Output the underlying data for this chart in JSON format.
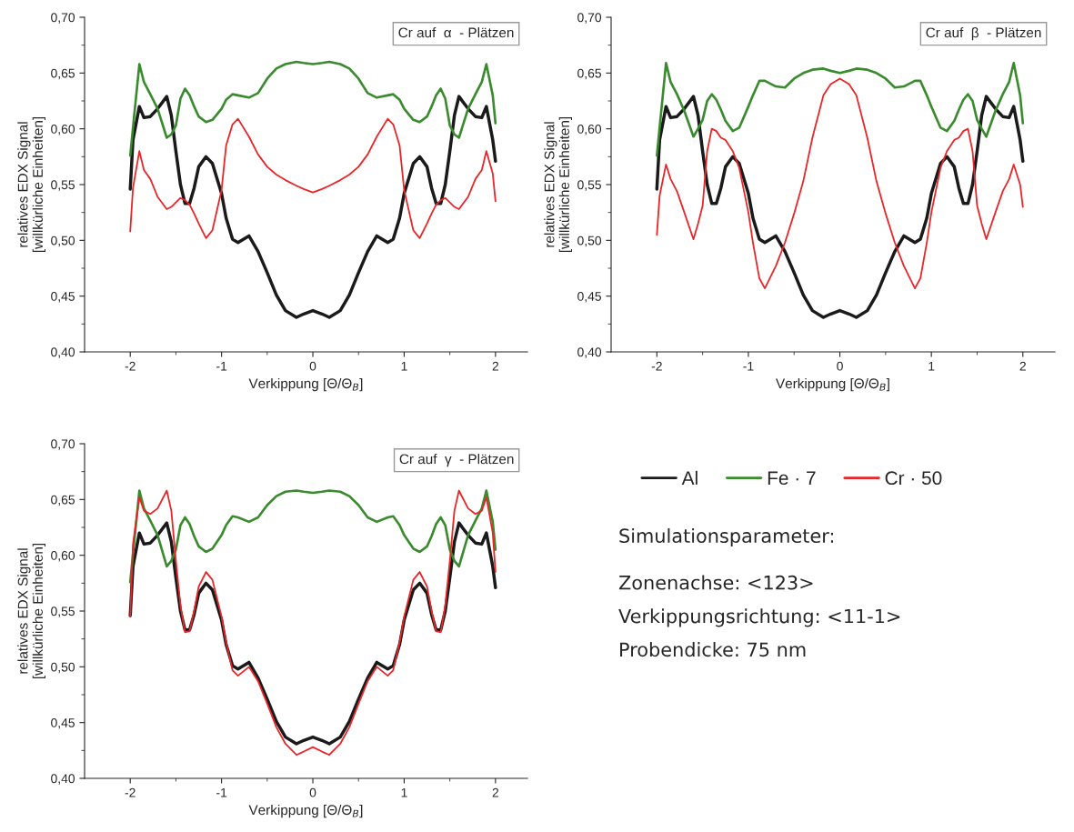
{
  "chart_data": [
    {
      "type": "line",
      "title": "Cr auf  α  - Plätzen",
      "xlabel": "Verkippung [Θ/Θ$_{B}$]",
      "ylabel": "relatives EDX Signal\n[willkürliche Einheiten]",
      "x": [
        -2,
        -1.97,
        -1.9,
        -1.85,
        -1.78,
        -1.7,
        -1.6,
        -1.55,
        -1.5,
        -1.45,
        -1.4,
        -1.35,
        -1.3,
        -1.25,
        -1.17,
        -1.1,
        -1.0,
        -0.95,
        -0.88,
        -0.82,
        -0.7,
        -0.6,
        -0.5,
        -0.4,
        -0.3,
        -0.18,
        -0.1,
        0,
        0.1,
        0.18,
        0.3,
        0.4,
        0.5,
        0.6,
        0.7,
        0.82,
        0.88,
        0.95,
        1.0,
        1.1,
        1.17,
        1.25,
        1.3,
        1.35,
        1.4,
        1.45,
        1.5,
        1.55,
        1.6,
        1.7,
        1.78,
        1.85,
        1.9,
        1.97,
        2
      ],
      "xlim": [
        -2.5,
        2.35
      ],
      "xticks": [
        -2,
        {
          "value": -1.5,
          "label": null
        },
        -1,
        {
          "value": -0.5,
          "label": null
        },
        0,
        {
          "value": 0.5,
          "label": null
        },
        1,
        {
          "value": 1.5,
          "label": null
        },
        2
      ],
      "ylim": [
        0.4,
        0.7
      ],
      "yticks": [
        {
          "value": 0.4,
          "label": "0,40"
        },
        {
          "value": 0.425,
          "label": null
        },
        {
          "value": 0.45,
          "label": "0,45"
        },
        {
          "value": 0.475,
          "label": null
        },
        {
          "value": 0.5,
          "label": "0,50"
        },
        {
          "value": 0.525,
          "label": null
        },
        {
          "value": 0.55,
          "label": "0,55"
        },
        {
          "value": 0.575,
          "label": null
        },
        {
          "value": 0.6,
          "label": "0,60"
        },
        {
          "value": 0.625,
          "label": null
        },
        {
          "value": 0.65,
          "label": "0,65"
        },
        {
          "value": 0.675,
          "label": null
        },
        {
          "value": 0.7,
          "label": "0,70"
        }
      ],
      "series": [
        {
          "color": "#1a1a1a",
          "values": [
            0.546,
            0.59,
            0.62,
            0.61,
            0.611,
            0.618,
            0.629,
            0.612,
            0.58,
            0.55,
            0.533,
            0.533,
            0.547,
            0.566,
            0.575,
            0.569,
            0.542,
            0.52,
            0.501,
            0.498,
            0.504,
            0.49,
            0.471,
            0.451,
            0.437,
            0.431,
            0.434,
            0.437,
            0.434,
            0.431,
            0.437,
            0.451,
            0.471,
            0.49,
            0.504,
            0.498,
            0.501,
            0.52,
            0.542,
            0.569,
            0.575,
            0.566,
            0.547,
            0.533,
            0.533,
            0.55,
            0.58,
            0.612,
            0.629,
            0.618,
            0.611,
            0.61,
            0.62,
            0.59,
            0.571
          ]
        },
        {
          "color": "#3a8a2e",
          "values": [
            0.576,
            0.601,
            0.658,
            0.642,
            0.631,
            0.618,
            0.592,
            0.595,
            0.603,
            0.627,
            0.636,
            0.63,
            0.62,
            0.611,
            0.606,
            0.608,
            0.618,
            0.626,
            0.631,
            0.63,
            0.628,
            0.632,
            0.645,
            0.654,
            0.658,
            0.66,
            0.659,
            0.658,
            0.659,
            0.66,
            0.658,
            0.654,
            0.645,
            0.632,
            0.628,
            0.63,
            0.631,
            0.626,
            0.618,
            0.608,
            0.606,
            0.611,
            0.62,
            0.63,
            0.636,
            0.627,
            0.603,
            0.595,
            0.592,
            0.618,
            0.631,
            0.642,
            0.658,
            0.63,
            0.605
          ]
        },
        {
          "color": "#e8262a",
          "values": [
            0.508,
            0.547,
            0.58,
            0.563,
            0.555,
            0.539,
            0.528,
            0.53,
            0.534,
            0.538,
            0.536,
            0.532,
            0.524,
            0.515,
            0.502,
            0.509,
            0.545,
            0.585,
            0.604,
            0.609,
            0.593,
            0.577,
            0.566,
            0.559,
            0.554,
            0.549,
            0.546,
            0.543,
            0.546,
            0.549,
            0.554,
            0.559,
            0.566,
            0.577,
            0.593,
            0.609,
            0.604,
            0.585,
            0.545,
            0.509,
            0.502,
            0.515,
            0.524,
            0.532,
            0.536,
            0.538,
            0.534,
            0.53,
            0.528,
            0.539,
            0.555,
            0.563,
            0.58,
            0.56,
            0.535
          ]
        }
      ]
    },
    {
      "type": "line",
      "title": "Cr auf  β  - Plätzen",
      "xlabel": "Verkippung [Θ/Θ$_{B}$]",
      "ylabel": "relatives EDX Signal\n[willkürliche Einheiten]",
      "x": [
        -2,
        -1.97,
        -1.9,
        -1.85,
        -1.78,
        -1.7,
        -1.6,
        -1.55,
        -1.5,
        -1.45,
        -1.4,
        -1.35,
        -1.3,
        -1.25,
        -1.17,
        -1.1,
        -1.0,
        -0.95,
        -0.88,
        -0.82,
        -0.7,
        -0.6,
        -0.5,
        -0.4,
        -0.3,
        -0.18,
        -0.1,
        0,
        0.1,
        0.18,
        0.3,
        0.4,
        0.5,
        0.6,
        0.7,
        0.82,
        0.88,
        0.95,
        1.0,
        1.1,
        1.17,
        1.25,
        1.3,
        1.35,
        1.4,
        1.45,
        1.5,
        1.55,
        1.6,
        1.7,
        1.78,
        1.85,
        1.9,
        1.97,
        2
      ],
      "xlim": [
        -2.5,
        2.35
      ],
      "xticks": [
        -2,
        {
          "value": -1.5,
          "label": null
        },
        -1,
        {
          "value": -0.5,
          "label": null
        },
        0,
        {
          "value": 0.5,
          "label": null
        },
        1,
        {
          "value": 1.5,
          "label": null
        },
        2
      ],
      "ylim": [
        0.4,
        0.7
      ],
      "yticks": [
        {
          "value": 0.4,
          "label": "0,40"
        },
        {
          "value": 0.425,
          "label": null
        },
        {
          "value": 0.45,
          "label": "0,45"
        },
        {
          "value": 0.475,
          "label": null
        },
        {
          "value": 0.5,
          "label": "0,50"
        },
        {
          "value": 0.525,
          "label": null
        },
        {
          "value": 0.55,
          "label": "0,55"
        },
        {
          "value": 0.575,
          "label": null
        },
        {
          "value": 0.6,
          "label": "0,60"
        },
        {
          "value": 0.625,
          "label": null
        },
        {
          "value": 0.65,
          "label": "0,65"
        },
        {
          "value": 0.675,
          "label": null
        },
        {
          "value": 0.7,
          "label": "0,70"
        }
      ],
      "series": [
        {
          "color": "#1a1a1a",
          "values": [
            0.546,
            0.59,
            0.62,
            0.61,
            0.611,
            0.618,
            0.629,
            0.612,
            0.58,
            0.55,
            0.533,
            0.533,
            0.547,
            0.566,
            0.575,
            0.569,
            0.542,
            0.52,
            0.501,
            0.498,
            0.504,
            0.49,
            0.471,
            0.451,
            0.437,
            0.431,
            0.434,
            0.437,
            0.434,
            0.431,
            0.437,
            0.451,
            0.471,
            0.49,
            0.504,
            0.498,
            0.501,
            0.52,
            0.542,
            0.569,
            0.575,
            0.566,
            0.547,
            0.533,
            0.533,
            0.55,
            0.58,
            0.612,
            0.629,
            0.618,
            0.611,
            0.61,
            0.62,
            0.59,
            0.571
          ]
        },
        {
          "color": "#3a8a2e",
          "values": [
            0.576,
            0.601,
            0.659,
            0.642,
            0.631,
            0.616,
            0.593,
            0.6,
            0.608,
            0.625,
            0.631,
            0.626,
            0.617,
            0.607,
            0.598,
            0.601,
            0.62,
            0.63,
            0.643,
            0.643,
            0.638,
            0.637,
            0.645,
            0.65,
            0.653,
            0.654,
            0.652,
            0.65,
            0.652,
            0.654,
            0.653,
            0.65,
            0.645,
            0.637,
            0.638,
            0.643,
            0.643,
            0.63,
            0.62,
            0.601,
            0.598,
            0.607,
            0.617,
            0.626,
            0.631,
            0.625,
            0.608,
            0.6,
            0.593,
            0.616,
            0.631,
            0.642,
            0.659,
            0.63,
            0.605
          ]
        },
        {
          "color": "#e8262a",
          "values": [
            0.505,
            0.54,
            0.568,
            0.555,
            0.544,
            0.525,
            0.501,
            0.515,
            0.531,
            0.58,
            0.6,
            0.598,
            0.592,
            0.59,
            0.58,
            0.565,
            0.525,
            0.498,
            0.466,
            0.457,
            0.477,
            0.498,
            0.524,
            0.553,
            0.592,
            0.63,
            0.64,
            0.645,
            0.64,
            0.63,
            0.592,
            0.553,
            0.524,
            0.498,
            0.477,
            0.457,
            0.466,
            0.498,
            0.525,
            0.565,
            0.58,
            0.59,
            0.592,
            0.598,
            0.6,
            0.58,
            0.531,
            0.515,
            0.501,
            0.525,
            0.544,
            0.555,
            0.568,
            0.55,
            0.53
          ]
        }
      ]
    },
    {
      "type": "line",
      "title": "Cr auf  γ  - Plätzen",
      "xlabel": "Verkippung [Θ/Θ$_{B}$]",
      "ylabel": "relatives EDX Signal\n[willkürliche Einheiten]",
      "legend": "right",
      "x": [
        -2,
        -1.97,
        -1.9,
        -1.85,
        -1.78,
        -1.7,
        -1.6,
        -1.55,
        -1.5,
        -1.45,
        -1.4,
        -1.35,
        -1.3,
        -1.25,
        -1.17,
        -1.1,
        -1.0,
        -0.95,
        -0.88,
        -0.82,
        -0.7,
        -0.6,
        -0.5,
        -0.4,
        -0.3,
        -0.18,
        -0.1,
        0,
        0.1,
        0.18,
        0.3,
        0.4,
        0.5,
        0.6,
        0.7,
        0.82,
        0.88,
        0.95,
        1.0,
        1.1,
        1.17,
        1.25,
        1.3,
        1.35,
        1.4,
        1.45,
        1.5,
        1.55,
        1.6,
        1.7,
        1.78,
        1.85,
        1.9,
        1.97,
        2
      ],
      "xlim": [
        -2.5,
        2.35
      ],
      "xticks": [
        -2,
        {
          "value": -1.5,
          "label": null
        },
        -1,
        {
          "value": -0.5,
          "label": null
        },
        0,
        {
          "value": 0.5,
          "label": null
        },
        1,
        {
          "value": 1.5,
          "label": null
        },
        2
      ],
      "ylim": [
        0.4,
        0.7
      ],
      "yticks": [
        {
          "value": 0.4,
          "label": "0,40"
        },
        {
          "value": 0.425,
          "label": null
        },
        {
          "value": 0.45,
          "label": "0,45"
        },
        {
          "value": 0.475,
          "label": null
        },
        {
          "value": 0.5,
          "label": "0,50"
        },
        {
          "value": 0.525,
          "label": null
        },
        {
          "value": 0.55,
          "label": "0,55"
        },
        {
          "value": 0.575,
          "label": null
        },
        {
          "value": 0.6,
          "label": "0,60"
        },
        {
          "value": 0.625,
          "label": null
        },
        {
          "value": 0.65,
          "label": "0,65"
        },
        {
          "value": 0.675,
          "label": null
        },
        {
          "value": 0.7,
          "label": "0,70"
        }
      ],
      "series": [
        {
          "name": "Al",
          "color": "#1a1a1a",
          "values": [
            0.546,
            0.59,
            0.62,
            0.61,
            0.611,
            0.618,
            0.629,
            0.612,
            0.58,
            0.55,
            0.533,
            0.533,
            0.547,
            0.566,
            0.575,
            0.569,
            0.542,
            0.52,
            0.501,
            0.498,
            0.504,
            0.49,
            0.471,
            0.451,
            0.437,
            0.431,
            0.434,
            0.437,
            0.434,
            0.431,
            0.437,
            0.451,
            0.471,
            0.49,
            0.504,
            0.498,
            0.501,
            0.52,
            0.542,
            0.569,
            0.575,
            0.566,
            0.547,
            0.533,
            0.533,
            0.55,
            0.58,
            0.612,
            0.629,
            0.618,
            0.611,
            0.61,
            0.62,
            0.59,
            0.571
          ]
        },
        {
          "name": "Fe · 7",
          "color": "#3a8a2e",
          "values": [
            0.576,
            0.601,
            0.658,
            0.642,
            0.631,
            0.618,
            0.59,
            0.595,
            0.605,
            0.627,
            0.634,
            0.628,
            0.617,
            0.608,
            0.603,
            0.606,
            0.618,
            0.627,
            0.635,
            0.634,
            0.63,
            0.634,
            0.645,
            0.653,
            0.657,
            0.658,
            0.657,
            0.656,
            0.657,
            0.658,
            0.657,
            0.653,
            0.645,
            0.634,
            0.63,
            0.634,
            0.635,
            0.627,
            0.618,
            0.606,
            0.603,
            0.608,
            0.617,
            0.628,
            0.634,
            0.627,
            0.605,
            0.595,
            0.59,
            0.618,
            0.631,
            0.642,
            0.658,
            0.63,
            0.605
          ]
        },
        {
          "name": "Cr · 50",
          "color": "#e8262a",
          "values": [
            0.545,
            0.61,
            0.652,
            0.64,
            0.637,
            0.642,
            0.658,
            0.64,
            0.595,
            0.555,
            0.531,
            0.532,
            0.55,
            0.572,
            0.585,
            0.578,
            0.545,
            0.522,
            0.497,
            0.492,
            0.5,
            0.487,
            0.467,
            0.446,
            0.431,
            0.421,
            0.424,
            0.428,
            0.424,
            0.421,
            0.431,
            0.446,
            0.467,
            0.487,
            0.5,
            0.492,
            0.497,
            0.522,
            0.545,
            0.578,
            0.585,
            0.572,
            0.55,
            0.532,
            0.531,
            0.555,
            0.595,
            0.64,
            0.658,
            0.642,
            0.637,
            0.64,
            0.652,
            0.62,
            0.585
          ]
        }
      ]
    },
    {
      "type": "other",
      "annotations": [
        "Simulationsparameter:",
        "Zonenachse: <123>",
        "Verkippungsrichtung: <11-1>",
        "Probendicke: 75 nm"
      ]
    }
  ]
}
